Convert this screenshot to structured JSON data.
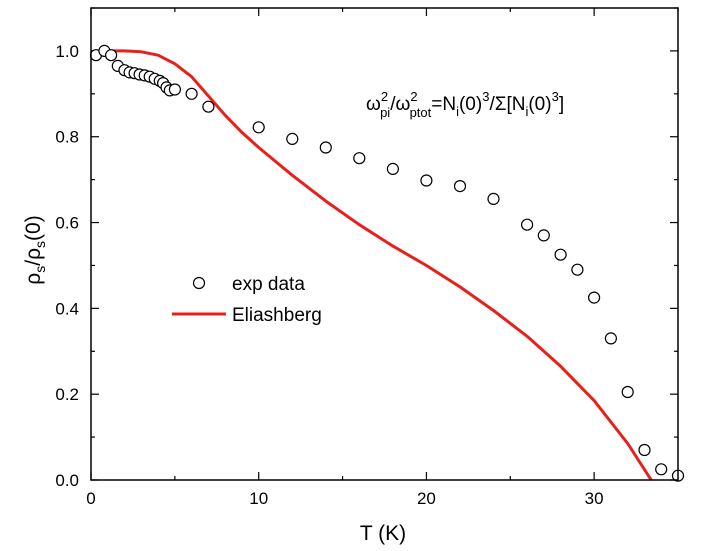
{
  "chart_data": {
    "type": "scatter",
    "xlabel": {
      "main": "T (K)"
    },
    "ylabel": {
      "rho": "ρ",
      "sub": "s",
      "slash": "/",
      "rho2": "ρ",
      "sub2": "s",
      "tail": "(0)"
    },
    "xlim": [
      0,
      35
    ],
    "ylim": [
      0,
      1.1
    ],
    "x_ticks": [
      0,
      10,
      20,
      30
    ],
    "y_ticks": [
      0.0,
      0.2,
      0.4,
      0.6,
      0.8,
      1.0
    ],
    "x_tick_labels": [
      "0",
      "10",
      "20",
      "30"
    ],
    "y_tick_labels": [
      "0.0",
      "0.2",
      "0.4",
      "0.6",
      "0.8",
      "1.0"
    ],
    "annotation": {
      "omega1": "ω",
      "sup1": "2",
      "sub1": "pi",
      "slash1": "/",
      "omega2": "ω",
      "sup2": "2",
      "sub2": "ptot",
      "eq": "=N",
      "sub3": "i",
      "paren1": "(0)",
      "sup3": "3",
      "slash2": "/Σ[N",
      "sub4": "i",
      "paren2": "(0)",
      "sup4": "3",
      "close": "]"
    },
    "series": [
      {
        "name": "exp data",
        "marker": "open-circle",
        "color": "#000000",
        "points": [
          [
            0.3,
            0.99
          ],
          [
            0.8,
            1.0
          ],
          [
            1.2,
            0.99
          ],
          [
            1.6,
            0.965
          ],
          [
            2.0,
            0.955
          ],
          [
            2.3,
            0.95
          ],
          [
            2.6,
            0.948
          ],
          [
            2.9,
            0.945
          ],
          [
            3.2,
            0.943
          ],
          [
            3.5,
            0.94
          ],
          [
            3.8,
            0.935
          ],
          [
            4.1,
            0.93
          ],
          [
            4.3,
            0.925
          ],
          [
            4.5,
            0.915
          ],
          [
            4.7,
            0.908
          ],
          [
            5.0,
            0.91
          ],
          [
            6.0,
            0.9
          ],
          [
            7.0,
            0.87
          ],
          [
            10.0,
            0.822
          ],
          [
            12.0,
            0.795
          ],
          [
            14.0,
            0.775
          ],
          [
            16.0,
            0.75
          ],
          [
            18.0,
            0.725
          ],
          [
            20.0,
            0.698
          ],
          [
            22.0,
            0.685
          ],
          [
            24.0,
            0.655
          ],
          [
            26.0,
            0.595
          ],
          [
            27.0,
            0.57
          ],
          [
            28.0,
            0.525
          ],
          [
            29.0,
            0.49
          ],
          [
            30.0,
            0.425
          ],
          [
            31.0,
            0.33
          ],
          [
            32.0,
            0.205
          ],
          [
            33.0,
            0.07
          ],
          [
            34.0,
            0.025
          ],
          [
            35.0,
            0.01
          ]
        ]
      },
      {
        "name": "Eliashberg",
        "marker": "line",
        "color": "#e8201a",
        "points": [
          [
            0.8,
            1.0
          ],
          [
            2.0,
            1.0
          ],
          [
            3.0,
            0.998
          ],
          [
            4.0,
            0.99
          ],
          [
            5.0,
            0.97
          ],
          [
            6.0,
            0.94
          ],
          [
            7.0,
            0.895
          ],
          [
            8.0,
            0.85
          ],
          [
            9.0,
            0.81
          ],
          [
            10.0,
            0.775
          ],
          [
            12.0,
            0.71
          ],
          [
            14.0,
            0.65
          ],
          [
            16.0,
            0.595
          ],
          [
            18.0,
            0.545
          ],
          [
            20.0,
            0.5
          ],
          [
            22.0,
            0.45
          ],
          [
            24.0,
            0.395
          ],
          [
            26.0,
            0.335
          ],
          [
            28.0,
            0.265
          ],
          [
            30.0,
            0.185
          ],
          [
            32.0,
            0.085
          ],
          [
            33.4,
            0.0
          ]
        ]
      }
    ],
    "legend_position": "center-left"
  }
}
